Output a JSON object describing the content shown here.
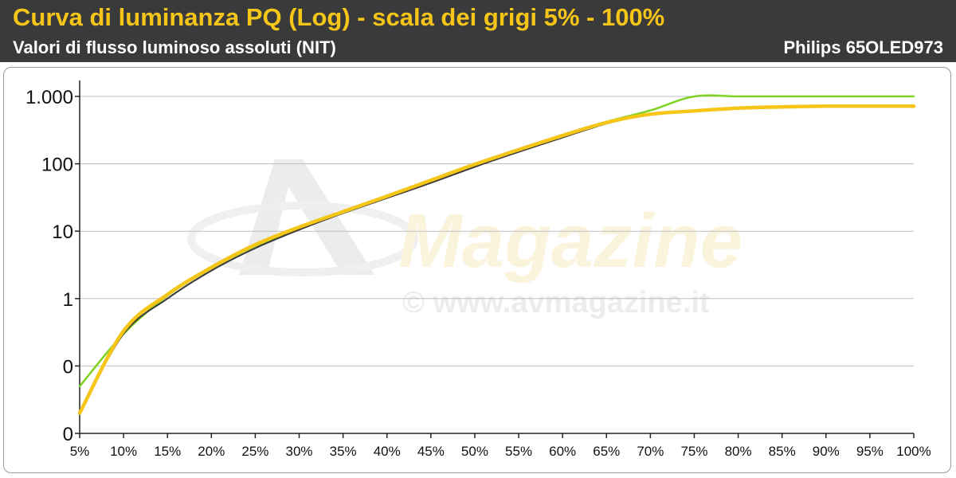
{
  "header": {
    "title": "Curva di luminanza PQ (Log) - scala dei grigi 5% - 100%",
    "subtitle": "Valori di flusso luminoso assoluti (NIT)",
    "model": "Philips 65OLED973"
  },
  "watermark": {
    "brand": "Magazine",
    "url": "© www.avmagazine.it"
  },
  "chart_data": {
    "type": "line",
    "x": [
      5,
      10,
      15,
      20,
      25,
      30,
      35,
      40,
      45,
      50,
      55,
      60,
      65,
      70,
      75,
      80,
      85,
      90,
      95,
      100
    ],
    "x_tick_labels": [
      "5%",
      "10%",
      "15%",
      "20%",
      "25%",
      "30%",
      "35%",
      "40%",
      "45%",
      "50%",
      "55%",
      "60%",
      "65%",
      "70%",
      "75%",
      "80%",
      "85%",
      "90%",
      "95%",
      "100%"
    ],
    "y_scale": "log",
    "y_ticks": [
      0.01,
      0.1,
      1,
      10,
      100,
      1000
    ],
    "y_tick_labels": [
      "0",
      "0",
      "1",
      "10",
      "100",
      "1.000"
    ],
    "ylim": [
      0.01,
      1500
    ],
    "grid": true,
    "legend": "none",
    "series": [
      {
        "color": "#7ed321",
        "values": [
          0.05,
          0.3,
          1.1,
          2.8,
          6.0,
          11,
          19,
          32,
          55,
          95,
          160,
          260,
          420,
          620,
          1000,
          1000,
          1000,
          1000,
          1000,
          1000
        ]
      },
      {
        "color": "#3a3a3a",
        "values": [
          0.02,
          0.3,
          1.0,
          2.6,
          5.6,
          10.5,
          18.5,
          31,
          52,
          90,
          150,
          245,
          395,
          540,
          620,
          680,
          710,
          720,
          720,
          720
        ]
      },
      {
        "color": "#f5c518",
        "values": [
          0.02,
          0.33,
          1.15,
          2.9,
          6.3,
          11.5,
          19.5,
          33,
          57,
          98,
          162,
          262,
          410,
          545,
          610,
          670,
          700,
          715,
          715,
          715
        ]
      }
    ]
  }
}
